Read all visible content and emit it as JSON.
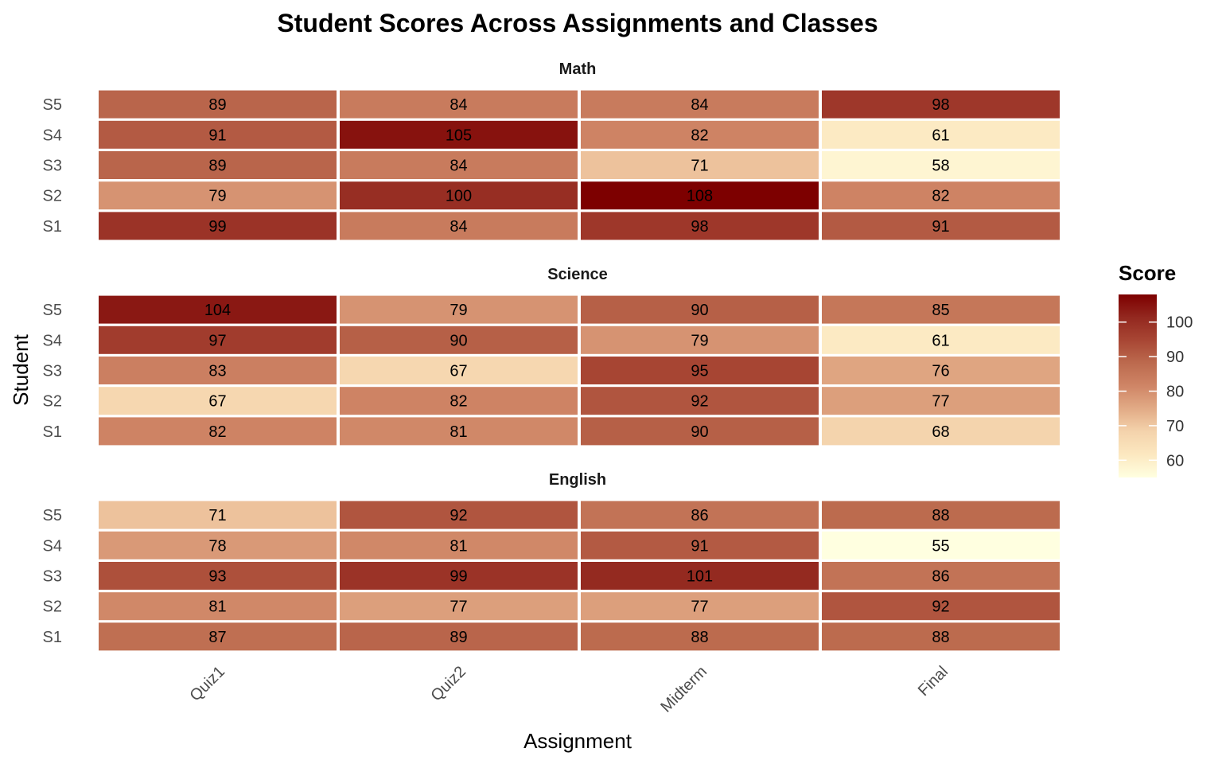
{
  "chart_data": {
    "type": "heatmap",
    "title": "Student Scores Across Assignments and Classes",
    "xlabel": "Assignment",
    "ylabel": "Student",
    "x_categories": [
      "Quiz1",
      "Quiz2",
      "Midterm",
      "Final"
    ],
    "y_categories": [
      "S5",
      "S4",
      "S3",
      "S2",
      "S1"
    ],
    "facets": [
      {
        "name": "Math",
        "values": [
          [
            89,
            84,
            84,
            98
          ],
          [
            91,
            105,
            82,
            61
          ],
          [
            89,
            84,
            71,
            58
          ],
          [
            79,
            100,
            108,
            82
          ],
          [
            99,
            84,
            98,
            91
          ]
        ]
      },
      {
        "name": "Science",
        "values": [
          [
            104,
            79,
            90,
            85
          ],
          [
            97,
            90,
            79,
            61
          ],
          [
            83,
            67,
            95,
            76
          ],
          [
            67,
            82,
            92,
            77
          ],
          [
            82,
            81,
            90,
            68
          ]
        ]
      },
      {
        "name": "English",
        "values": [
          [
            71,
            92,
            86,
            88
          ],
          [
            78,
            81,
            91,
            55
          ],
          [
            93,
            99,
            101,
            86
          ],
          [
            81,
            77,
            77,
            92
          ],
          [
            87,
            89,
            88,
            88
          ]
        ]
      }
    ],
    "legend": {
      "title": "Score",
      "ticks": [
        60,
        70,
        80,
        90,
        100
      ],
      "range": [
        55,
        108
      ],
      "placement": "right"
    },
    "colors": [
      "#ffffe0",
      "#fce8c0",
      "#f4d3ac",
      "#e2ab86",
      "#cf8566",
      "#bc6a4e",
      "#a84634",
      "#93281f",
      "#7d0000"
    ]
  }
}
